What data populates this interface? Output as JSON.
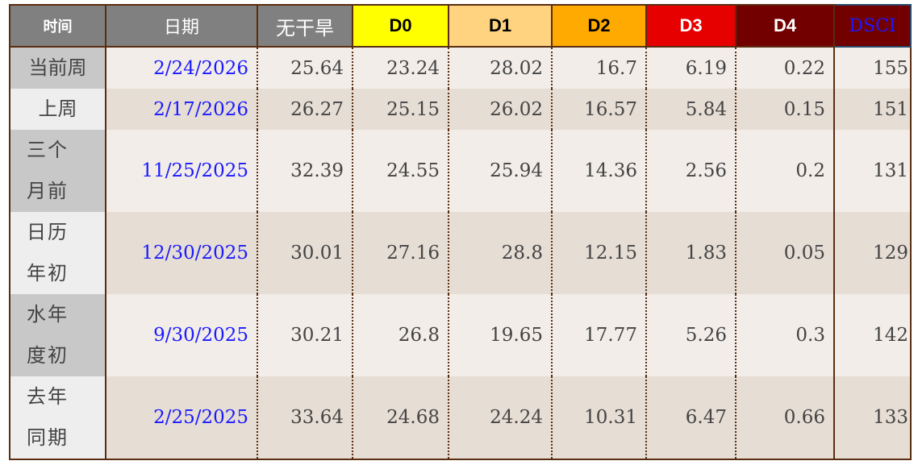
{
  "headers": [
    "时间",
    "日期",
    "无干旱",
    "D0",
    "D1",
    "D2",
    "D3",
    "D4",
    "DSCI"
  ],
  "header_colors": {
    "gray": "#808080",
    "D0": "#ffff00",
    "D1": "#ffd37f",
    "D2": "#ffaa00",
    "D3": "#e60000",
    "D4": "#730000",
    "DSCI": "#730000"
  },
  "rows": [
    {
      "period": "当前周",
      "date": "2/24/2026",
      "none": "25.64",
      "d0": "23.24",
      "d1": "28.02",
      "d2": "16.7",
      "d3": "6.19",
      "d4": "0.22",
      "dsci": "155"
    },
    {
      "period": "上周",
      "date": "2/17/2026",
      "none": "26.27",
      "d0": "25.15",
      "d1": "26.02",
      "d2": "16.57",
      "d3": "5.84",
      "d4": "0.15",
      "dsci": "151"
    },
    {
      "period": "三个月前",
      "date": "11/25/2025",
      "none": "32.39",
      "d0": "24.55",
      "d1": "25.94",
      "d2": "14.36",
      "d3": "2.56",
      "d4": "0.2",
      "dsci": "131"
    },
    {
      "period": "日历年初",
      "date": "12/30/2025",
      "none": "30.01",
      "d0": "27.16",
      "d1": "28.8",
      "d2": "12.15",
      "d3": "1.83",
      "d4": "0.05",
      "dsci": "129"
    },
    {
      "period": "水年度初",
      "date": "9/30/2025",
      "none": "30.21",
      "d0": "26.8",
      "d1": "19.65",
      "d2": "17.77",
      "d3": "5.26",
      "d4": "0.3",
      "dsci": "142"
    },
    {
      "period": "去年同期",
      "date": "2/25/2025",
      "none": "33.64",
      "d0": "24.68",
      "d1": "24.24",
      "d2": "10.31",
      "d3": "6.47",
      "d4": "0.66",
      "dsci": "133"
    }
  ]
}
